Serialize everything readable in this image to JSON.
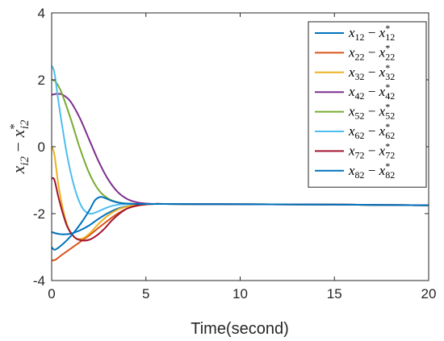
{
  "chart_data": {
    "type": "line",
    "xlabel": "Time(second)",
    "ylabel": "x_{i2} − x*_{i2}",
    "ylabel_parts": {
      "base": "x",
      "sub": "i2",
      "minus": "−",
      "star": "*"
    },
    "xlim": [
      0,
      20
    ],
    "ylim": [
      -4,
      4
    ],
    "xticks": [
      0,
      5,
      10,
      15,
      20
    ],
    "yticks": [
      -4,
      -2,
      0,
      2,
      4
    ],
    "grid": false,
    "legend_position": "top-right",
    "series": [
      {
        "name": "x12 − x*12",
        "label": {
          "sub": "12"
        },
        "color": "#0072BD",
        "x": [
          0,
          0.3,
          0.6,
          1.0,
          1.5,
          2.0,
          2.5,
          3.0,
          3.5,
          4.0,
          4.5,
          5.0,
          5.5,
          6,
          10,
          15,
          20
        ],
        "y": [
          -2.55,
          -2.6,
          -2.62,
          -2.6,
          -2.5,
          -2.35,
          -2.15,
          -1.98,
          -1.85,
          -1.78,
          -1.74,
          -1.72,
          -1.71,
          -1.71,
          -1.72,
          -1.73,
          -1.75
        ]
      },
      {
        "name": "x22 − x*22",
        "label": {
          "sub": "22"
        },
        "color": "#D95319",
        "x": [
          0,
          0.2,
          0.5,
          1.0,
          1.5,
          2.0,
          2.5,
          3.0,
          3.5,
          4.0,
          4.5,
          5.0,
          5.5,
          6,
          10,
          15,
          20
        ],
        "y": [
          -3.4,
          -3.38,
          -3.25,
          -3.05,
          -2.85,
          -2.65,
          -2.42,
          -2.2,
          -2.0,
          -1.85,
          -1.77,
          -1.73,
          -1.71,
          -1.71,
          -1.72,
          -1.73,
          -1.75
        ]
      },
      {
        "name": "x32 − x*32",
        "label": {
          "sub": "32"
        },
        "color": "#EDB120",
        "x": [
          0,
          0.15,
          0.4,
          0.8,
          1.2,
          1.6,
          2.0,
          2.5,
          3.0,
          3.5,
          4.0,
          4.5,
          5.0,
          5.5,
          6,
          10,
          15,
          20
        ],
        "y": [
          0.0,
          -0.25,
          -1.3,
          -2.3,
          -2.7,
          -2.75,
          -2.6,
          -2.3,
          -2.05,
          -1.88,
          -1.79,
          -1.74,
          -1.72,
          -1.71,
          -1.71,
          -1.72,
          -1.73,
          -1.75
        ]
      },
      {
        "name": "x42 − x*42",
        "label": {
          "sub": "42"
        },
        "color": "#7E2F8E",
        "x": [
          0,
          0.3,
          0.6,
          1.0,
          1.5,
          2.0,
          2.5,
          3.0,
          3.5,
          4.0,
          4.5,
          5.0,
          5.5,
          6,
          10,
          15,
          20
        ],
        "y": [
          1.55,
          1.58,
          1.55,
          1.35,
          0.85,
          0.2,
          -0.45,
          -0.98,
          -1.35,
          -1.56,
          -1.66,
          -1.7,
          -1.71,
          -1.71,
          -1.72,
          -1.73,
          -1.75
        ]
      },
      {
        "name": "x52 − x*52",
        "label": {
          "sub": "52"
        },
        "color": "#77AC30",
        "x": [
          0,
          0.2,
          0.5,
          1.0,
          1.5,
          2.0,
          2.5,
          3.0,
          3.5,
          4.0,
          4.5,
          5.0,
          5.5,
          6,
          10,
          15,
          20
        ],
        "y": [
          2.0,
          1.95,
          1.65,
          0.85,
          -0.05,
          -0.8,
          -1.3,
          -1.55,
          -1.66,
          -1.7,
          -1.71,
          -1.71,
          -1.71,
          -1.71,
          -1.72,
          -1.73,
          -1.75
        ]
      },
      {
        "name": "x62 − x*62",
        "label": {
          "sub": "62"
        },
        "color": "#4DBEEE",
        "x": [
          0,
          0.15,
          0.4,
          0.8,
          1.2,
          1.6,
          2.0,
          2.4,
          2.8,
          3.2,
          3.6,
          4.0,
          4.5,
          5.0,
          6,
          10,
          15,
          20
        ],
        "y": [
          2.42,
          2.2,
          1.2,
          -0.2,
          -1.2,
          -1.8,
          -2.0,
          -1.95,
          -1.85,
          -1.77,
          -1.73,
          -1.71,
          -1.71,
          -1.71,
          -1.71,
          -1.72,
          -1.73,
          -1.75
        ]
      },
      {
        "name": "x72 − x*72",
        "label": {
          "sub": "72"
        },
        "color": "#A2142F",
        "x": [
          0,
          0.15,
          0.4,
          0.8,
          1.2,
          1.6,
          2.0,
          2.4,
          2.8,
          3.2,
          3.6,
          4.0,
          4.5,
          5.0,
          5.5,
          6,
          10,
          15,
          20
        ],
        "y": [
          -0.95,
          -1.0,
          -1.6,
          -2.35,
          -2.7,
          -2.8,
          -2.78,
          -2.65,
          -2.45,
          -2.2,
          -2.0,
          -1.85,
          -1.76,
          -1.72,
          -1.71,
          -1.71,
          -1.72,
          -1.73,
          -1.75
        ]
      },
      {
        "name": "x82 − x*82",
        "label": {
          "sub": "82"
        },
        "color": "#0072BD",
        "x": [
          0,
          0.15,
          0.4,
          0.8,
          1.2,
          1.6,
          2.0,
          2.3,
          2.6,
          2.9,
          3.2,
          3.6,
          4.0,
          4.5,
          5.0,
          6,
          10,
          15,
          20
        ],
        "y": [
          -3.0,
          -3.08,
          -3.0,
          -2.8,
          -2.55,
          -2.25,
          -1.9,
          -1.6,
          -1.5,
          -1.55,
          -1.62,
          -1.68,
          -1.7,
          -1.71,
          -1.71,
          -1.71,
          -1.72,
          -1.73,
          -1.75
        ]
      }
    ]
  }
}
